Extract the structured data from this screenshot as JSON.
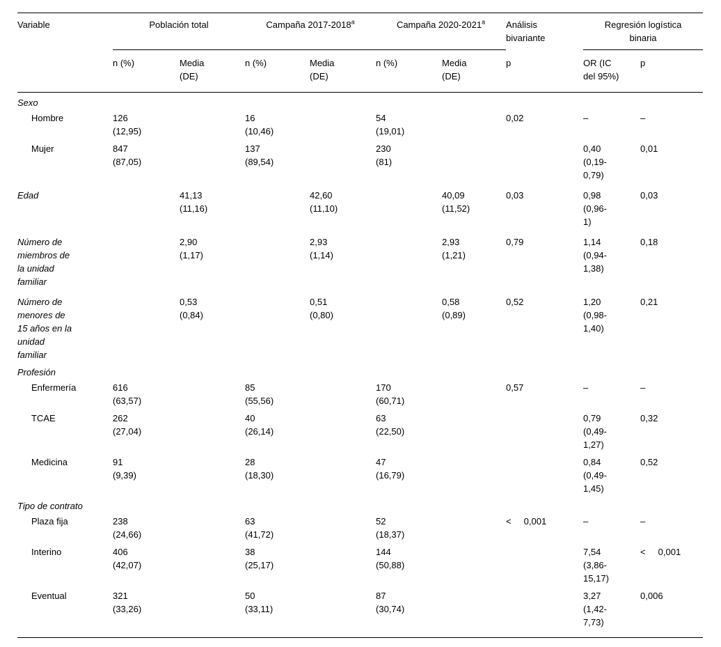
{
  "page": {
    "background": "#ffffff",
    "text_color": "#000000",
    "rule_color": "#000000"
  },
  "table": {
    "columns": {
      "variable_header": "Variable",
      "groups": [
        {
          "label": "Población total",
          "sup": "",
          "subcols": [
            "n (%)",
            "Media\n(DE)"
          ]
        },
        {
          "label": "Campaña 2017-2018",
          "sup": "a",
          "subcols": [
            "n (%)",
            "Media\n(DE)"
          ]
        },
        {
          "label": "Campaña 2020-2021",
          "sup": "a",
          "subcols": [
            "n (%)",
            "Media\n(DE)"
          ]
        },
        {
          "label": "Análisis\nbivariante",
          "sup": "",
          "subcols": [
            "p"
          ]
        },
        {
          "label": "Regresión logística\nbinaria",
          "sup": "",
          "subcols": [
            "OR (IC\ndel 95%)",
            "p"
          ]
        }
      ]
    },
    "rows": [
      {
        "style": "section",
        "label": "Sexo",
        "cells": [
          "",
          "",
          "",
          "",
          "",
          "",
          "",
          "",
          ""
        ]
      },
      {
        "style": "item",
        "label": "Hombre",
        "cells": [
          "126\n(12,95)",
          "",
          "16\n(10,46)",
          "",
          "54\n(19,01)",
          "",
          "0,02",
          "–",
          "–"
        ]
      },
      {
        "style": "item",
        "label": "Mujer",
        "cells": [
          "847\n(87,05)",
          "",
          "137\n(89,54)",
          "",
          "230\n(81)",
          "",
          "",
          "0,40\n(0,19-\n0,79)",
          "0,01"
        ]
      },
      {
        "style": "measure",
        "label": "Edad",
        "cells": [
          "",
          "41,13\n(11,16)",
          "",
          "42,60\n(11,10)",
          "",
          "40,09\n(11,52)",
          "0,03",
          "0,98\n(0,96-\n1)",
          "0,03"
        ]
      },
      {
        "style": "measure",
        "label": "Número de\nmiembros de\nla unidad\nfamiliar",
        "cells": [
          "",
          "2,90\n(1,17)",
          "",
          "2,93\n(1,14)",
          "",
          "2,93\n(1,21)",
          "0,79",
          "1,14\n(0,94-\n1,38)",
          "0,18"
        ]
      },
      {
        "style": "measure",
        "label": "Número de\nmenores de\n15 años en la\nunidad\nfamiliar",
        "cells": [
          "",
          "0,53\n(0,84)",
          "",
          "0,51\n(0,80)",
          "",
          "0,58\n(0,89)",
          "0,52",
          "1,20\n(0,98-\n1,40)",
          "0,21"
        ]
      },
      {
        "style": "section",
        "label": "Profesión",
        "cells": [
          "",
          "",
          "",
          "",
          "",
          "",
          "",
          "",
          ""
        ]
      },
      {
        "style": "item",
        "label": "Enfermería",
        "cells": [
          "616\n(63,57)",
          "",
          "85\n(55,56)",
          "",
          "170\n(60,71)",
          "",
          "0,57",
          "–",
          "–"
        ]
      },
      {
        "style": "item",
        "label": "TCAE",
        "cells": [
          "262\n(27,04)",
          "",
          "40\n(26,14)",
          "",
          "63\n(22,50)",
          "",
          "",
          "0,79\n(0,49-\n1,27)",
          "0,32"
        ]
      },
      {
        "style": "item",
        "label": "Medicina",
        "cells": [
          "91\n(9,39)",
          "",
          "28\n(18,30)",
          "",
          "47\n(16,79)",
          "",
          "",
          "0,84\n(0,49-\n1,45)",
          "0,52"
        ]
      },
      {
        "style": "section",
        "label": "Tipo de contrato",
        "cells": [
          "",
          "",
          "",
          "",
          "",
          "",
          "",
          "",
          ""
        ]
      },
      {
        "style": "item",
        "label": "Plaza fija",
        "cells": [
          "238\n(24,66)",
          "",
          "63\n(41,72)",
          "",
          "52\n(18,37)",
          "",
          "<     0,001",
          "–",
          "–"
        ]
      },
      {
        "style": "item",
        "label": "Interino",
        "cells": [
          "406\n(42,07)",
          "",
          "38\n(25,17)",
          "",
          "144\n(50,88)",
          "",
          "",
          "7,54\n(3,86-\n15,17)",
          "<     0,001"
        ]
      },
      {
        "style": "item",
        "label": "Eventual",
        "cells": [
          "321\n(33,26)",
          "",
          "50\n(33,11)",
          "",
          "87\n(30,74)",
          "",
          "",
          "3,27\n(1,42-\n7,73)",
          "0,006"
        ]
      }
    ]
  }
}
